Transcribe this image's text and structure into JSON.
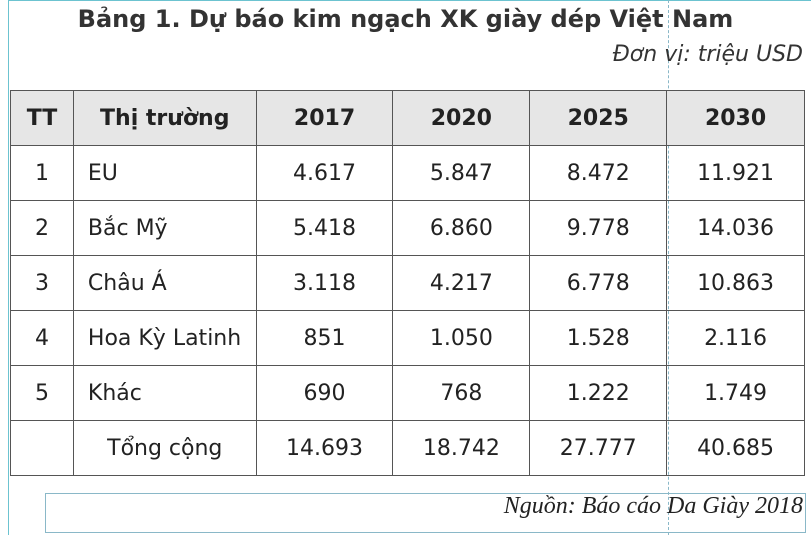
{
  "header": {
    "title": "Bảng 1. Dự báo kim ngạch XK giày dép Việt Nam",
    "unit": "Đơn vị: triệu USD"
  },
  "table": {
    "columns": [
      "TT",
      "Thị trường",
      "2017",
      "2020",
      "2025",
      "2030"
    ],
    "rows": [
      [
        "1",
        "EU",
        "4.617",
        "5.847",
        "8.472",
        "11.921"
      ],
      [
        "2",
        "Bắc Mỹ",
        "5.418",
        "6.860",
        "9.778",
        "14.036"
      ],
      [
        "3",
        "Châu Á",
        "3.118",
        "4.217",
        "6.778",
        "10.863"
      ],
      [
        "4",
        "Hoa Kỳ Latinh",
        "851",
        "1.050",
        "1.528",
        "2.116"
      ],
      [
        "5",
        "Khác",
        "690",
        "768",
        "1.222",
        "1.749"
      ]
    ],
    "total": {
      "label": "Tổng cộng",
      "values": [
        "14.693",
        "18.742",
        "27.777",
        "40.685"
      ]
    }
  },
  "source": "Nguồn: Báo cáo Da Giày 2018"
}
